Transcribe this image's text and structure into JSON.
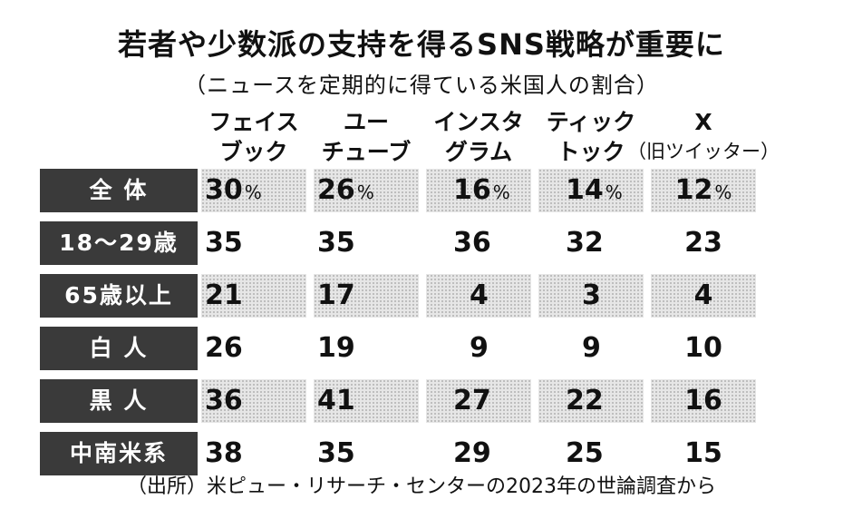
{
  "title": "若者や少数派の支持を得るSNS戦略が重要に",
  "subtitle": "（ニュースを定期的に得ている米国人の割合）",
  "footnote": "（出所）米ピュー・リサーチ・センターの2023年の世論調査から",
  "chart_data": {
    "type": "table",
    "unit": "%",
    "columns": [
      {
        "line1": "フェイス",
        "line2": "ブック"
      },
      {
        "line1": "ユー",
        "line2": "チューブ"
      },
      {
        "line1": "インスタ",
        "line2": "グラム"
      },
      {
        "line1": "ティック",
        "line2": "トック"
      },
      {
        "line1": "X",
        "line2": "（旧ツイッター）"
      }
    ],
    "rows": [
      {
        "label": "全 体",
        "values": [
          "30",
          "26",
          "16",
          "14",
          "12"
        ],
        "shaded": true,
        "show_unit": true
      },
      {
        "label": "18～29歳",
        "values": [
          "35",
          "35",
          "36",
          "32",
          "23"
        ],
        "shaded": false,
        "show_unit": false
      },
      {
        "label": "65歳以上",
        "values": [
          "21",
          "17",
          "4",
          "3",
          "4"
        ],
        "shaded": true,
        "show_unit": false
      },
      {
        "label": "白 人",
        "values": [
          "26",
          "19",
          "9",
          "9",
          "10"
        ],
        "shaded": false,
        "show_unit": false
      },
      {
        "label": "黒 人",
        "values": [
          "36",
          "41",
          "27",
          "22",
          "16"
        ],
        "shaded": true,
        "show_unit": false
      },
      {
        "label": "中南米系",
        "values": [
          "38",
          "35",
          "29",
          "25",
          "15"
        ],
        "shaded": false,
        "show_unit": false
      }
    ],
    "colors": {
      "row_label_bg": "#3a3a3a",
      "row_label_text": "#ffffff",
      "shaded_cell": "#e6e6e6"
    }
  }
}
